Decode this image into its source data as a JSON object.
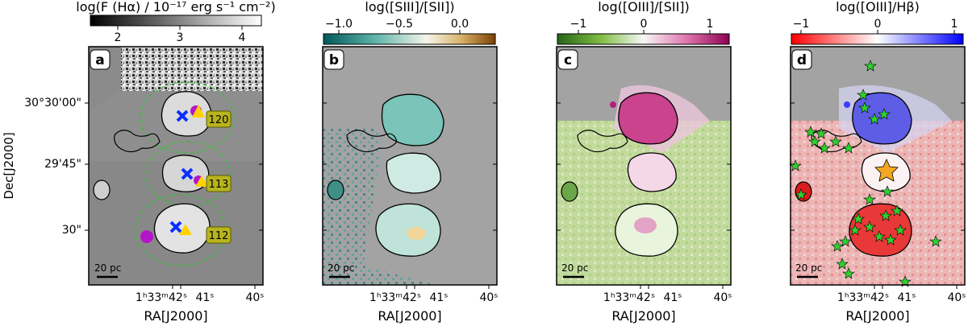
{
  "panels": [
    {
      "letter": "a",
      "colorbar_title": "log(F (Hα) / 10⁻¹⁷ erg s⁻¹ cm⁻²)",
      "colorbar_ticks": [
        "2",
        "3",
        "4"
      ],
      "colors": [
        "#000000",
        "#ffffff"
      ],
      "bg": "#8e8e8e",
      "region_labels": [
        "120",
        "113",
        "112"
      ]
    },
    {
      "letter": "b",
      "colorbar_title": "log([SIII]/[SII])",
      "colorbar_ticks": [
        "−1.0",
        "−0.5",
        "0.0"
      ],
      "colors": [
        "#00585a",
        "#fbfbf0",
        "#7d4000"
      ],
      "bg": "#a3a3a3"
    },
    {
      "letter": "c",
      "colorbar_title": "log([OIII]/[SII])",
      "colorbar_ticks": [
        "−1",
        "0",
        "1"
      ],
      "colors": [
        "#3f8f0f",
        "#f7f7f5",
        "#8e0152"
      ],
      "bg": "#a3a3a3"
    },
    {
      "letter": "d",
      "colorbar_title": "log([OIII]/Hβ)",
      "colorbar_ticks": [
        "−1",
        "0",
        "1"
      ],
      "colors": [
        "#ff0000",
        "#ffffff",
        "#0000ff"
      ],
      "bg": "#a3a3a3"
    }
  ],
  "ra_ticks": [
    "1ʰ33ᵐ42ˢ",
    "41ˢ",
    "40ˢ"
  ],
  "ra_label": "RA[J2000]",
  "dec_ticks": [
    "30°30'00\"",
    "29'45\"",
    "30\""
  ],
  "dec_label": "Dec[J2000]",
  "scale_bar": "20 pc"
}
